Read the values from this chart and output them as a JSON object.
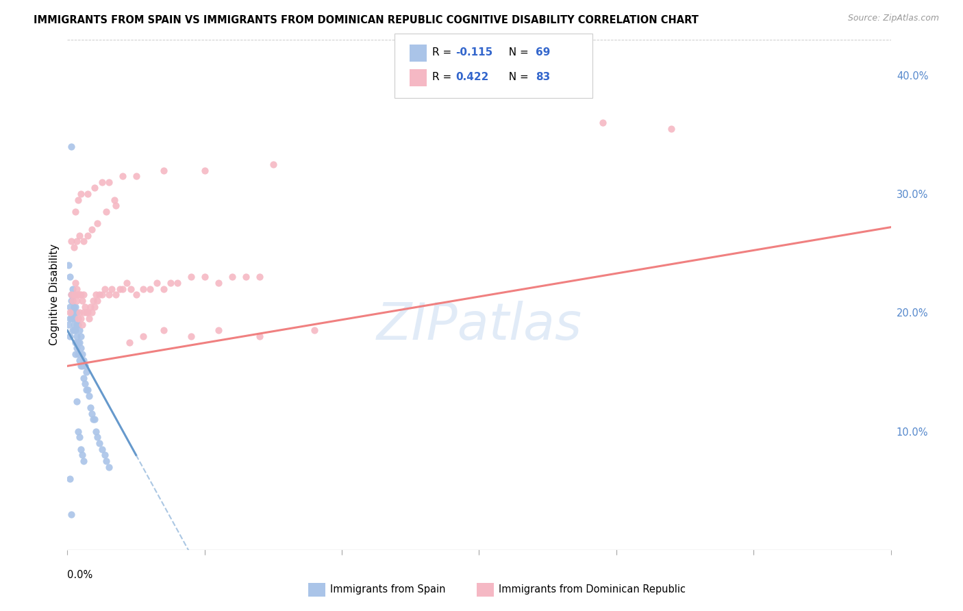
{
  "title": "IMMIGRANTS FROM SPAIN VS IMMIGRANTS FROM DOMINICAN REPUBLIC COGNITIVE DISABILITY CORRELATION CHART",
  "source": "Source: ZipAtlas.com",
  "ylabel": "Cognitive Disability",
  "right_yticks": [
    "40.0%",
    "30.0%",
    "20.0%",
    "10.0%"
  ],
  "right_ytick_vals": [
    0.4,
    0.3,
    0.2,
    0.1
  ],
  "xlim": [
    0.0,
    0.6
  ],
  "ylim": [
    0.0,
    0.43
  ],
  "legend_color1": "#aac4e8",
  "legend_color2": "#f5b8c4",
  "scatter_color_spain": "#aac4e8",
  "scatter_color_dr": "#f5b8c4",
  "line_color_spain": "#6699cc",
  "line_color_dr": "#f08080",
  "background": "#ffffff",
  "grid_color": "#cccccc",
  "spain_x": [
    0.001,
    0.002,
    0.002,
    0.002,
    0.003,
    0.003,
    0.003,
    0.003,
    0.004,
    0.004,
    0.004,
    0.004,
    0.005,
    0.005,
    0.005,
    0.005,
    0.005,
    0.006,
    0.006,
    0.006,
    0.006,
    0.007,
    0.007,
    0.007,
    0.007,
    0.008,
    0.008,
    0.008,
    0.009,
    0.009,
    0.009,
    0.01,
    0.01,
    0.01,
    0.011,
    0.011,
    0.012,
    0.012,
    0.013,
    0.013,
    0.014,
    0.014,
    0.015,
    0.016,
    0.017,
    0.018,
    0.019,
    0.02,
    0.021,
    0.022,
    0.023,
    0.025,
    0.027,
    0.028,
    0.03,
    0.002,
    0.003,
    0.004,
    0.005,
    0.006,
    0.007,
    0.008,
    0.009,
    0.01,
    0.011,
    0.012,
    0.001,
    0.002,
    0.003
  ],
  "spain_y": [
    0.19,
    0.18,
    0.195,
    0.205,
    0.195,
    0.2,
    0.21,
    0.215,
    0.185,
    0.195,
    0.2,
    0.21,
    0.185,
    0.19,
    0.2,
    0.205,
    0.215,
    0.175,
    0.185,
    0.195,
    0.205,
    0.17,
    0.18,
    0.19,
    0.2,
    0.165,
    0.175,
    0.19,
    0.16,
    0.175,
    0.185,
    0.155,
    0.17,
    0.18,
    0.155,
    0.165,
    0.145,
    0.16,
    0.14,
    0.155,
    0.135,
    0.15,
    0.135,
    0.13,
    0.12,
    0.115,
    0.11,
    0.11,
    0.1,
    0.095,
    0.09,
    0.085,
    0.08,
    0.075,
    0.07,
    0.23,
    0.34,
    0.22,
    0.215,
    0.165,
    0.125,
    0.1,
    0.095,
    0.085,
    0.08,
    0.075,
    0.24,
    0.06,
    0.03
  ],
  "dr_x": [
    0.002,
    0.003,
    0.004,
    0.005,
    0.006,
    0.006,
    0.007,
    0.007,
    0.008,
    0.008,
    0.009,
    0.009,
    0.01,
    0.01,
    0.011,
    0.011,
    0.012,
    0.012,
    0.013,
    0.014,
    0.015,
    0.016,
    0.017,
    0.018,
    0.019,
    0.02,
    0.021,
    0.022,
    0.023,
    0.025,
    0.027,
    0.03,
    0.032,
    0.035,
    0.038,
    0.04,
    0.043,
    0.046,
    0.05,
    0.055,
    0.06,
    0.065,
    0.07,
    0.075,
    0.08,
    0.09,
    0.1,
    0.11,
    0.12,
    0.13,
    0.14,
    0.003,
    0.005,
    0.007,
    0.009,
    0.012,
    0.015,
    0.018,
    0.022,
    0.028,
    0.035,
    0.045,
    0.055,
    0.07,
    0.09,
    0.11,
    0.14,
    0.18,
    0.034,
    0.39,
    0.44,
    0.006,
    0.008,
    0.01,
    0.015,
    0.02,
    0.025,
    0.03,
    0.04,
    0.05,
    0.07,
    0.1,
    0.15
  ],
  "dr_y": [
    0.2,
    0.215,
    0.21,
    0.215,
    0.215,
    0.225,
    0.21,
    0.22,
    0.195,
    0.215,
    0.2,
    0.215,
    0.195,
    0.215,
    0.19,
    0.21,
    0.2,
    0.215,
    0.205,
    0.2,
    0.2,
    0.195,
    0.205,
    0.2,
    0.21,
    0.205,
    0.215,
    0.21,
    0.215,
    0.215,
    0.22,
    0.215,
    0.22,
    0.215,
    0.22,
    0.22,
    0.225,
    0.22,
    0.215,
    0.22,
    0.22,
    0.225,
    0.22,
    0.225,
    0.225,
    0.23,
    0.23,
    0.225,
    0.23,
    0.23,
    0.23,
    0.26,
    0.255,
    0.26,
    0.265,
    0.26,
    0.265,
    0.27,
    0.275,
    0.285,
    0.29,
    0.175,
    0.18,
    0.185,
    0.18,
    0.185,
    0.18,
    0.185,
    0.295,
    0.36,
    0.355,
    0.285,
    0.295,
    0.3,
    0.3,
    0.305,
    0.31,
    0.31,
    0.315,
    0.315,
    0.32,
    0.32,
    0.325
  ],
  "spain_line_x0": 0.0,
  "spain_line_x_solid_end": 0.05,
  "spain_line_x_dash_end": 0.6,
  "spain_line_y0": 0.185,
  "spain_line_slope": -2.1,
  "dr_line_x0": 0.0,
  "dr_line_x_end": 0.6,
  "dr_line_y0": 0.155,
  "dr_line_slope": 0.195
}
